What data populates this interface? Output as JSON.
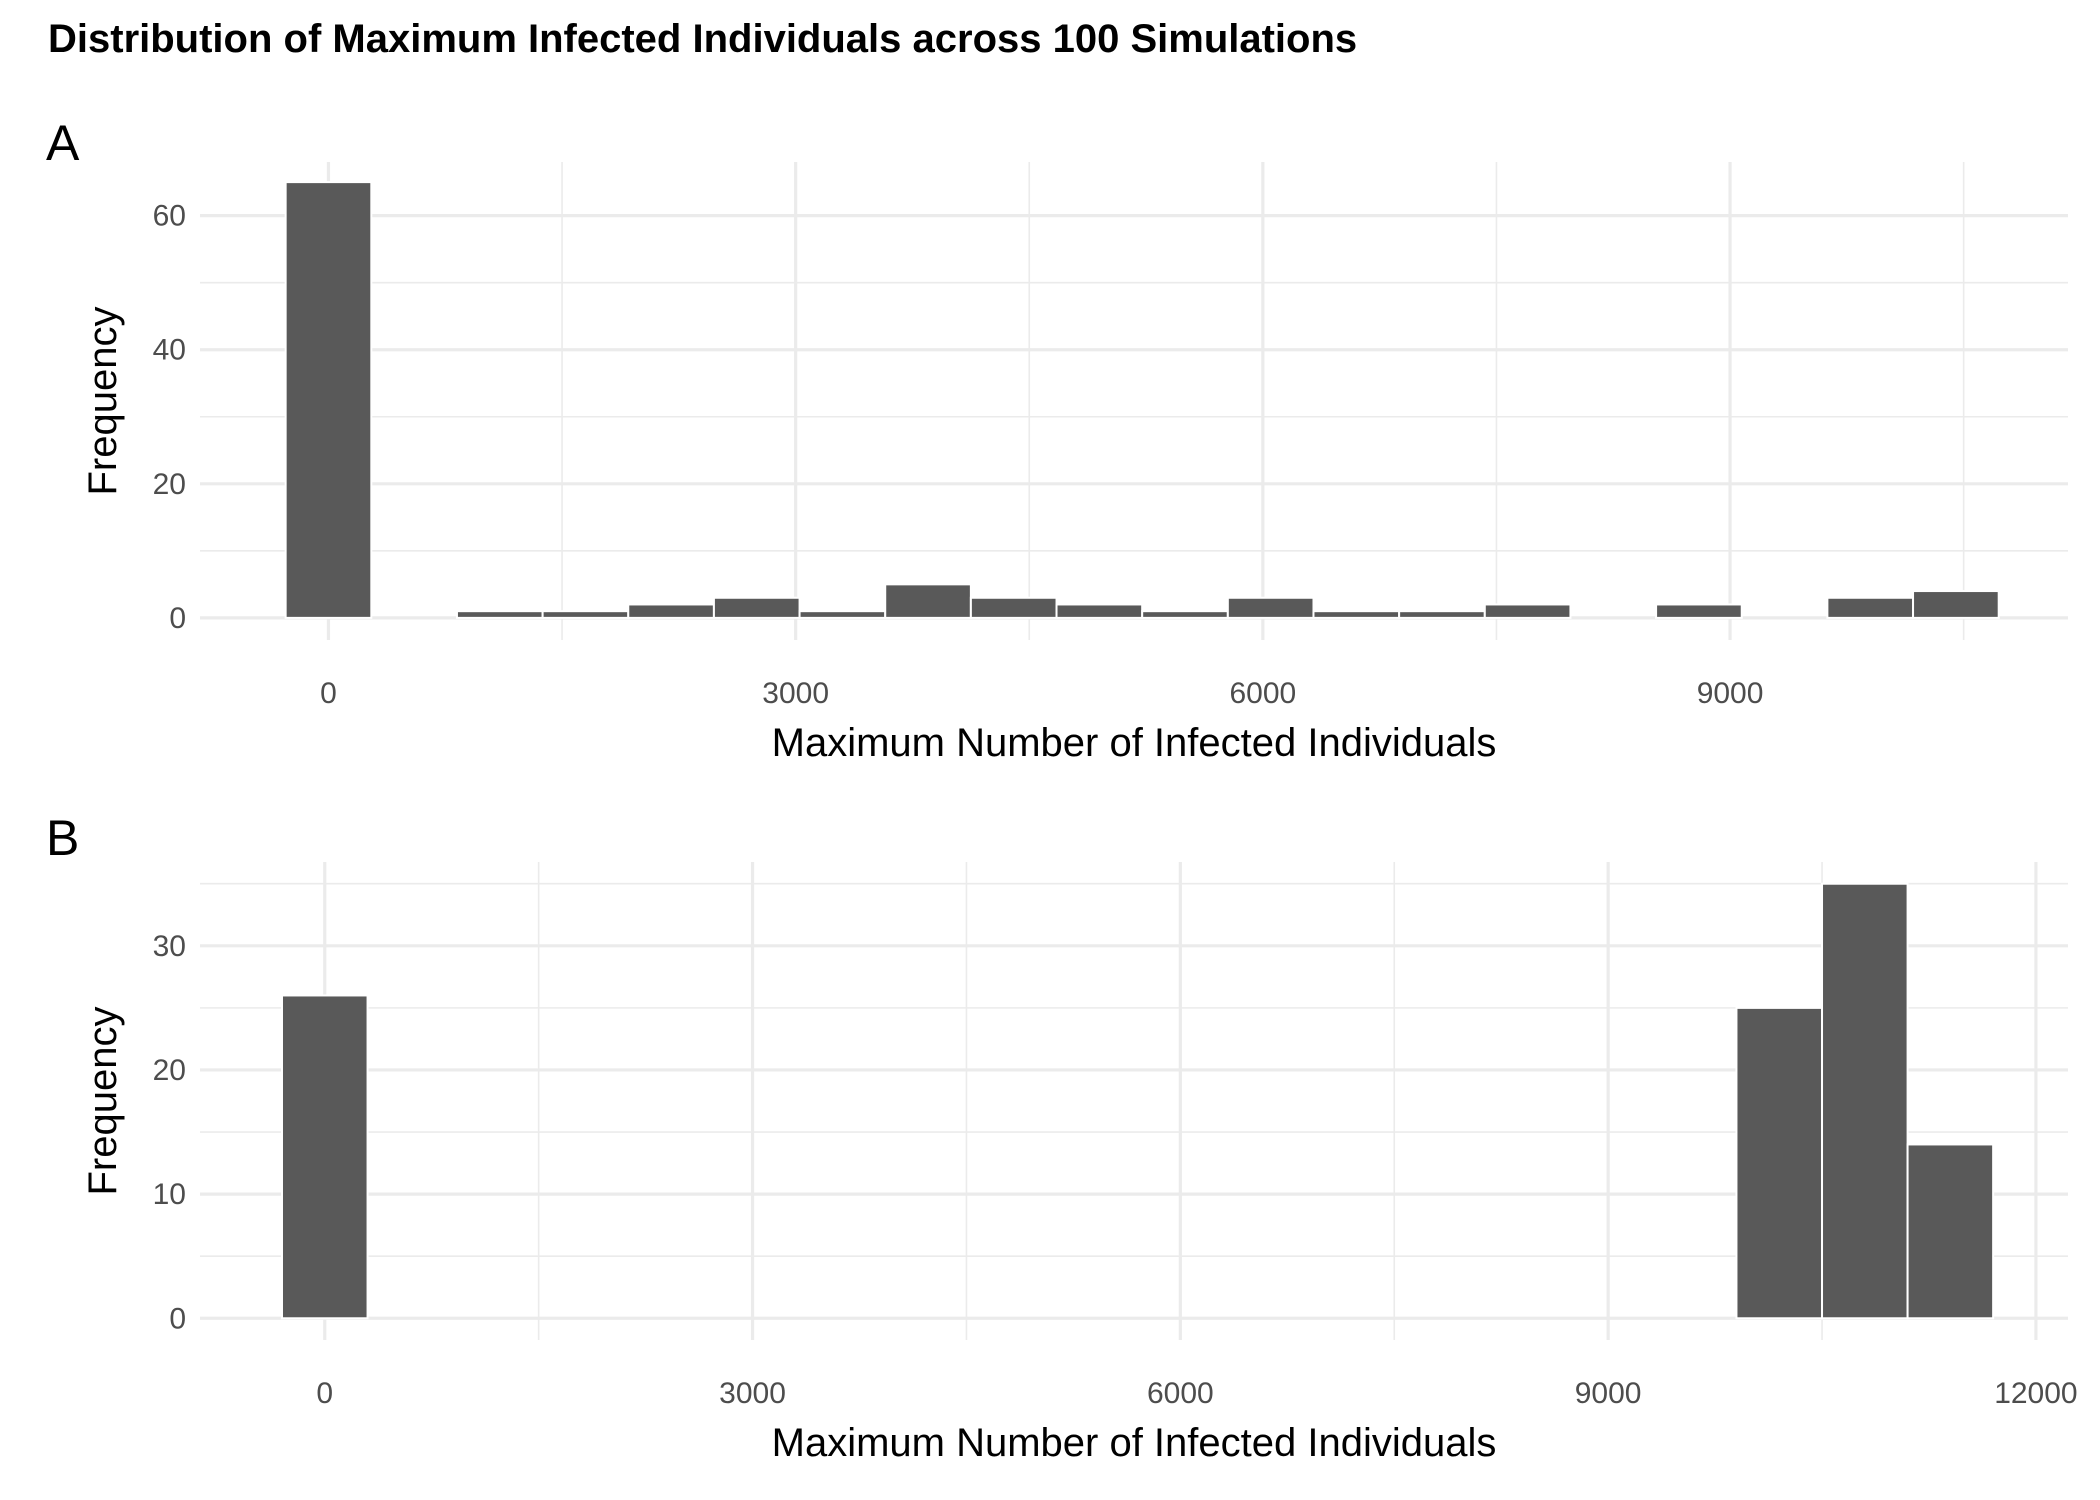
{
  "title": "Distribution of Maximum Infected Individuals across 100 Simulations",
  "chart_data": [
    {
      "type": "bar",
      "panel": "A",
      "xlabel": "Maximum Number of Infected Individuals",
      "ylabel": "Frequency",
      "xlim": [
        -825,
        11170
      ],
      "ylim": [
        -3.3,
        68
      ],
      "xticks": [
        0,
        3000,
        6000,
        9000
      ],
      "yticks": [
        0,
        20,
        40,
        60
      ],
      "bin_width": 550,
      "bins": [
        {
          "x": 0,
          "count": 65
        },
        {
          "x": 550,
          "count": 0
        },
        {
          "x": 1100,
          "count": 1
        },
        {
          "x": 1650,
          "count": 1
        },
        {
          "x": 2200,
          "count": 2
        },
        {
          "x": 2750,
          "count": 3
        },
        {
          "x": 3300,
          "count": 1
        },
        {
          "x": 3850,
          "count": 5
        },
        {
          "x": 4400,
          "count": 3
        },
        {
          "x": 4950,
          "count": 2
        },
        {
          "x": 5500,
          "count": 1
        },
        {
          "x": 6050,
          "count": 3
        },
        {
          "x": 6600,
          "count": 1
        },
        {
          "x": 7150,
          "count": 1
        },
        {
          "x": 7700,
          "count": 2
        },
        {
          "x": 8250,
          "count": 0
        },
        {
          "x": 8800,
          "count": 2
        },
        {
          "x": 9350,
          "count": 0
        },
        {
          "x": 9900,
          "count": 3
        },
        {
          "x": 10450,
          "count": 4
        }
      ]
    },
    {
      "type": "bar",
      "panel": "B",
      "xlabel": "Maximum Number of Infected Individuals",
      "ylabel": "Frequency",
      "xlim": [
        -875,
        12225
      ],
      "ylim": [
        -1.75,
        36.75
      ],
      "xticks": [
        0,
        3000,
        6000,
        9000,
        12000
      ],
      "yticks": [
        0,
        10,
        20,
        30
      ],
      "bin_width": 600,
      "bins": [
        {
          "x": 0,
          "count": 26
        },
        {
          "x": 600,
          "count": 0
        },
        {
          "x": 1200,
          "count": 0
        },
        {
          "x": 1800,
          "count": 0
        },
        {
          "x": 2400,
          "count": 0
        },
        {
          "x": 3000,
          "count": 0
        },
        {
          "x": 3600,
          "count": 0
        },
        {
          "x": 4200,
          "count": 0
        },
        {
          "x": 4800,
          "count": 0
        },
        {
          "x": 5400,
          "count": 0
        },
        {
          "x": 6000,
          "count": 0
        },
        {
          "x": 6600,
          "count": 0
        },
        {
          "x": 7200,
          "count": 0
        },
        {
          "x": 7800,
          "count": 0
        },
        {
          "x": 8400,
          "count": 0
        },
        {
          "x": 9000,
          "count": 0
        },
        {
          "x": 9600,
          "count": 0
        },
        {
          "x": 10200,
          "count": 25
        },
        {
          "x": 10800,
          "count": 35
        },
        {
          "x": 11400,
          "count": 14
        }
      ]
    }
  ]
}
